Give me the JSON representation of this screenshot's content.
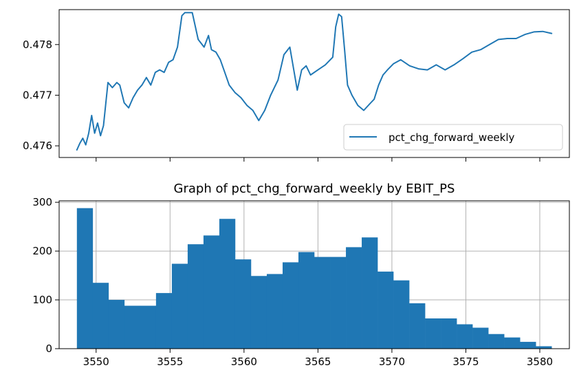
{
  "chart_data": [
    {
      "type": "line",
      "title": "",
      "xlabel": "",
      "ylabel": "",
      "xlim": [
        3547.5,
        3582.0
      ],
      "ylim": [
        0.47577,
        0.47869
      ],
      "yticks": [
        0.476,
        0.477,
        0.478
      ],
      "ytick_labels": [
        "0.476",
        "0.477",
        "0.478"
      ],
      "xticks": [
        3550,
        3555,
        3560,
        3565,
        3570,
        3575,
        3580
      ],
      "xtick_labels_visible": false,
      "legend": {
        "position": "lower right",
        "entries": [
          "pct_chg_forward_weekly"
        ]
      },
      "grid": false,
      "color": "#1f77b4",
      "series": [
        {
          "name": "pct_chg_forward_weekly",
          "x": [
            3548.7,
            3548.9,
            3549.1,
            3549.3,
            3549.5,
            3549.7,
            3549.9,
            3550.1,
            3550.3,
            3550.5,
            3550.8,
            3551.1,
            3551.4,
            3551.6,
            3551.9,
            3552.2,
            3552.5,
            3552.8,
            3553.1,
            3553.4,
            3553.7,
            3554.0,
            3554.3,
            3554.6,
            3554.9,
            3555.2,
            3555.5,
            3555.8,
            3556.0,
            3556.2,
            3556.5,
            3556.9,
            3557.3,
            3557.6,
            3557.8,
            3558.1,
            3558.4,
            3558.7,
            3559.0,
            3559.4,
            3559.8,
            3560.2,
            3560.6,
            3561.0,
            3561.4,
            3561.8,
            3562.3,
            3562.7,
            3563.1,
            3563.6,
            3563.9,
            3564.2,
            3564.5,
            3565.0,
            3565.5,
            3566.0,
            3566.2,
            3566.4,
            3566.6,
            3566.8,
            3567.0,
            3567.3,
            3567.7,
            3568.1,
            3568.5,
            3568.8,
            3569.1,
            3569.4,
            3569.7,
            3570.1,
            3570.6,
            3571.2,
            3571.8,
            3572.4,
            3573.0,
            3573.6,
            3574.2,
            3574.8,
            3575.4,
            3576.0,
            3576.6,
            3577.2,
            3577.8,
            3578.4,
            3579.0,
            3579.6,
            3580.2,
            3580.8
          ],
          "y": [
            0.47592,
            0.47605,
            0.47615,
            0.47602,
            0.47625,
            0.4766,
            0.47625,
            0.47645,
            0.4762,
            0.4764,
            0.47725,
            0.47715,
            0.47725,
            0.4772,
            0.47685,
            0.47675,
            0.47695,
            0.4771,
            0.4772,
            0.47735,
            0.4772,
            0.47745,
            0.4775,
            0.47745,
            0.47765,
            0.4777,
            0.47795,
            0.47857,
            0.47863,
            0.47863,
            0.47863,
            0.4781,
            0.47795,
            0.47818,
            0.4779,
            0.47785,
            0.4777,
            0.47745,
            0.4772,
            0.47705,
            0.47695,
            0.4768,
            0.4767,
            0.4765,
            0.4767,
            0.477,
            0.4773,
            0.4778,
            0.47795,
            0.4771,
            0.4775,
            0.47758,
            0.4774,
            0.4775,
            0.4776,
            0.47775,
            0.47835,
            0.4786,
            0.47855,
            0.4779,
            0.4772,
            0.477,
            0.4768,
            0.4767,
            0.47683,
            0.47692,
            0.4772,
            0.4774,
            0.4775,
            0.47762,
            0.4777,
            0.47758,
            0.47752,
            0.4775,
            0.4776,
            0.4775,
            0.4776,
            0.47772,
            0.47785,
            0.4779,
            0.478,
            0.4781,
            0.47812,
            0.47812,
            0.4782,
            0.47825,
            0.47826,
            0.47822
          ]
        }
      ]
    },
    {
      "type": "bar",
      "title": "Graph of pct_chg_forward_weekly by EBIT_PS",
      "xlabel": "",
      "ylabel": "",
      "xlim": [
        3547.5,
        3582.0
      ],
      "ylim": [
        0,
        303
      ],
      "xticks": [
        3550,
        3555,
        3560,
        3565,
        3570,
        3575,
        3580
      ],
      "xtick_labels": [
        "3550",
        "3555",
        "3560",
        "3565",
        "3570",
        "3575",
        "3580"
      ],
      "yticks": [
        0,
        100,
        200,
        300
      ],
      "ytick_labels": [
        "0",
        "100",
        "200",
        "300"
      ],
      "grid": true,
      "color": "#1f77b4",
      "bin_start": 3548.7,
      "bin_width": 1.07,
      "values": [
        288,
        135,
        100,
        88,
        88,
        114,
        174,
        214,
        232,
        266,
        183,
        149,
        153,
        177,
        198,
        188,
        188,
        208,
        228,
        158,
        140,
        93,
        62,
        62,
        50,
        43,
        30,
        23,
        14,
        5
      ]
    }
  ]
}
